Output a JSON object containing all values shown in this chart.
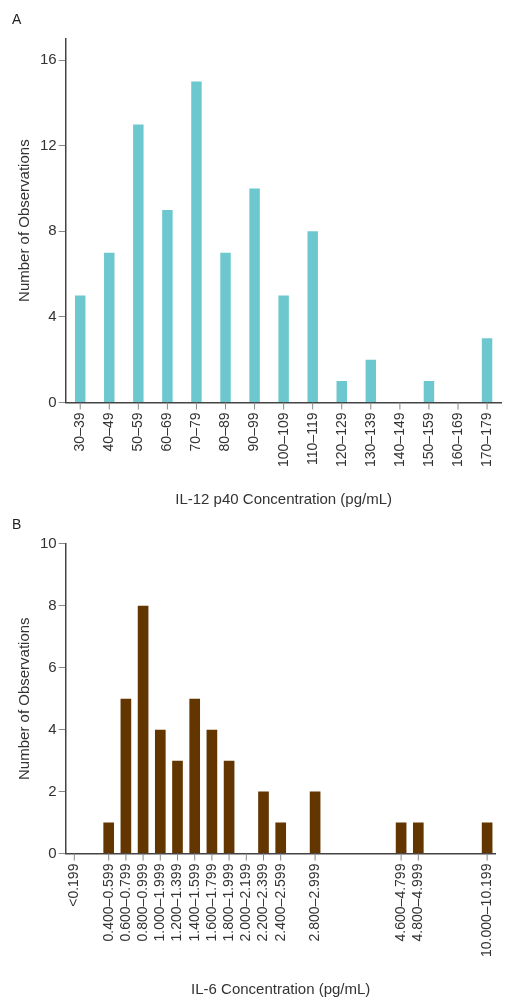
{
  "chart_data": [
    {
      "type": "bar",
      "title": "A",
      "xlabel": "IL-12 p40 Concentration (pg/mL)",
      "ylabel": "Number of Observations",
      "categories": [
        "30–39",
        "40–49",
        "50–59",
        "60–69",
        "70–79",
        "80–89",
        "90–99",
        "100–109",
        "110–119",
        "120–129",
        "130–139",
        "140–149",
        "150–159",
        "160–169",
        "170–179"
      ],
      "values": [
        5,
        7,
        13,
        9,
        15,
        7,
        10,
        5,
        8,
        1,
        2,
        0,
        1,
        0,
        3
      ],
      "color": "#6cc8ce",
      "ylim": [
        0,
        17
      ],
      "yticks": [
        0,
        4,
        8,
        12,
        16
      ],
      "grid": false,
      "legend": false
    },
    {
      "type": "bar",
      "title": "B",
      "xlabel": "IL-6 Concentration (pg/mL)",
      "ylabel": "Number of Observations",
      "categories": [
        "<0.199",
        null,
        "0.400–0.599",
        "0.600–0.799",
        "0.800–0.999",
        "1.000–1.999",
        "1.200–1.399",
        "1.400–1.599",
        "1.600–1.799",
        "1.800–1.999",
        "2.000–2.199",
        "2.200–2.399",
        "2.400–2.599",
        null,
        "2.800–2.999",
        null,
        null,
        null,
        null,
        "4.600–4.799",
        "4.800–4.999",
        null,
        null,
        null,
        "10.000–10.199"
      ],
      "values": [
        0,
        null,
        1,
        5,
        8,
        4,
        3,
        5,
        4,
        3,
        0,
        2,
        1,
        null,
        2,
        null,
        null,
        null,
        null,
        1,
        1,
        null,
        null,
        null,
        1
      ],
      "color": "#633600",
      "ylim": [
        0,
        10
      ],
      "yticks": [
        0,
        2,
        4,
        6,
        8,
        10
      ],
      "grid": false,
      "legend": false
    }
  ]
}
